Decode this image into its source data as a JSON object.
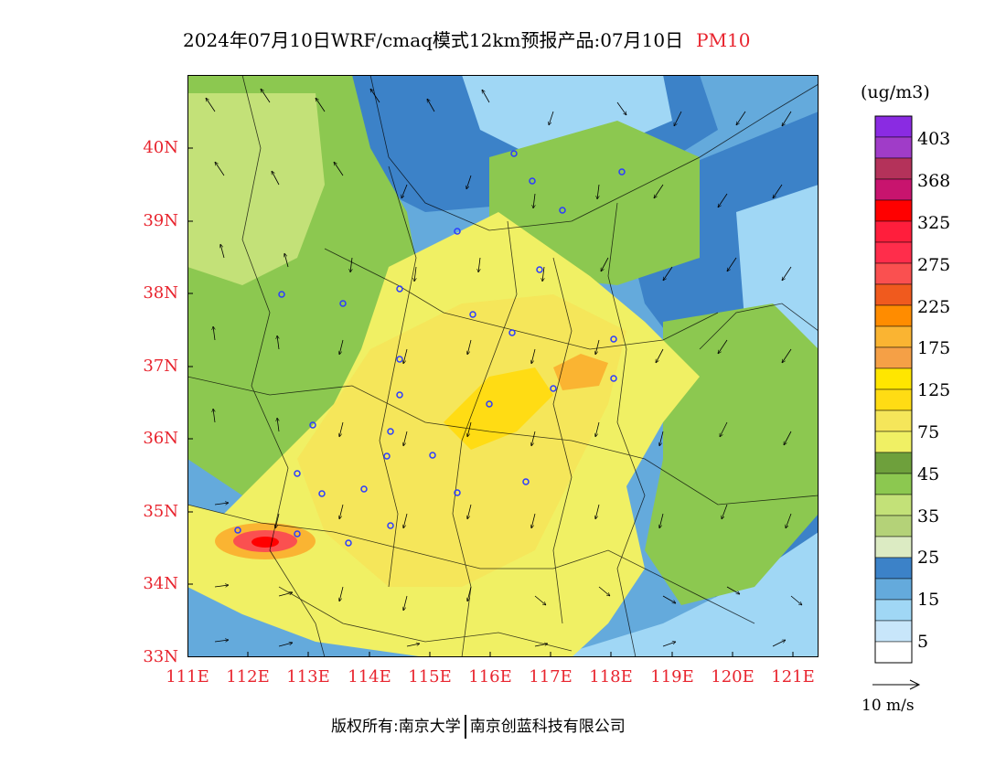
{
  "title": {
    "main": "2024年07月10日WRF/cmaq模式12km预报产品:07月10日",
    "product": "PM10"
  },
  "map": {
    "lat_labels": [
      "40N",
      "39N",
      "38N",
      "37N",
      "36N",
      "35N",
      "34N",
      "33N"
    ],
    "lon_labels": [
      "111E",
      "112E",
      "113E",
      "114E",
      "115E",
      "116E",
      "117E",
      "118E",
      "119E",
      "120E",
      "121E"
    ],
    "hotspot_color": "#e8242e"
  },
  "legend": {
    "unit": "(ug/m3)",
    "labels": [
      "403",
      "368",
      "325",
      "275",
      "225",
      "175",
      "125",
      "75",
      "45",
      "35",
      "25",
      "15",
      "5"
    ],
    "colors": [
      "#8a2be2",
      "#a03cc8",
      "#b4325a",
      "#c8146e",
      "#ff0000",
      "#ff1e3c",
      "#ff2d4b",
      "#fa5050",
      "#f05a1e",
      "#ff8c00",
      "#fab432",
      "#f5a046",
      "#ffe600",
      "#ffdc14",
      "#f5e65a",
      "#f0f064",
      "#6ea03c",
      "#8cc850",
      "#c3e178",
      "#b4d278",
      "#dcebc3",
      "#3c82c8",
      "#64aadc",
      "#a0d7f5",
      "#c8e6fa",
      "#ffffff"
    ]
  },
  "wind_reference": {
    "label": "10 m/s"
  },
  "copyright": {
    "left": "版权所有:南京大学",
    "right": "南京创蓝科技有限公司"
  }
}
